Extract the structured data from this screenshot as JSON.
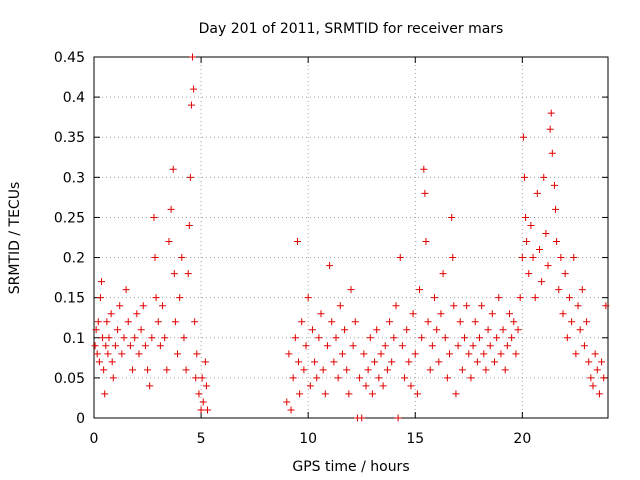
{
  "chart_data": {
    "type": "scatter",
    "title": "Day 201 of 2011, SRMTID for receiver mars",
    "xlabel": "GPS time / hours",
    "ylabel": "SRMTID / TECUs",
    "xlim": [
      0,
      24
    ],
    "ylim": [
      0,
      0.45
    ],
    "xticks": [
      0,
      5,
      10,
      15,
      20
    ],
    "yticks": [
      0,
      0.05,
      0.1,
      0.15,
      0.2,
      0.25,
      0.3,
      0.35,
      0.4,
      0.45
    ],
    "xtick_labels": [
      "0",
      "5",
      "10",
      "15",
      "20"
    ],
    "ytick_labels": [
      "0",
      "0.05",
      "0.1",
      "0.15",
      "0.2",
      "0.25",
      "0.3",
      "0.35",
      "0.4",
      "0.45"
    ],
    "grid": true,
    "marker": "+",
    "color": "#e00000",
    "series": [
      {
        "name": "SRMTID",
        "points": [
          [
            0.05,
            0.09
          ],
          [
            0.1,
            0.11
          ],
          [
            0.15,
            0.08
          ],
          [
            0.2,
            0.12
          ],
          [
            0.25,
            0.07
          ],
          [
            0.3,
            0.15
          ],
          [
            0.35,
            0.17
          ],
          [
            0.4,
            0.1
          ],
          [
            0.45,
            0.06
          ],
          [
            0.5,
            0.03
          ],
          [
            0.55,
            0.09
          ],
          [
            0.6,
            0.12
          ],
          [
            0.65,
            0.08
          ],
          [
            0.7,
            0.1
          ],
          [
            0.8,
            0.13
          ],
          [
            0.85,
            0.07
          ],
          [
            0.9,
            0.05
          ],
          [
            1.0,
            0.09
          ],
          [
            1.1,
            0.11
          ],
          [
            1.2,
            0.14
          ],
          [
            1.3,
            0.08
          ],
          [
            1.4,
            0.1
          ],
          [
            1.5,
            0.16
          ],
          [
            1.6,
            0.12
          ],
          [
            1.7,
            0.09
          ],
          [
            1.8,
            0.06
          ],
          [
            1.9,
            0.1
          ],
          [
            2.0,
            0.13
          ],
          [
            2.1,
            0.08
          ],
          [
            2.2,
            0.11
          ],
          [
            2.3,
            0.14
          ],
          [
            2.4,
            0.09
          ],
          [
            2.5,
            0.06
          ],
          [
            2.6,
            0.04
          ],
          [
            2.7,
            0.1
          ],
          [
            2.8,
            0.25
          ],
          [
            2.85,
            0.2
          ],
          [
            2.9,
            0.15
          ],
          [
            3.0,
            0.12
          ],
          [
            3.1,
            0.09
          ],
          [
            3.2,
            0.14
          ],
          [
            3.3,
            0.1
          ],
          [
            3.4,
            0.06
          ],
          [
            3.5,
            0.22
          ],
          [
            3.6,
            0.26
          ],
          [
            3.7,
            0.31
          ],
          [
            3.75,
            0.18
          ],
          [
            3.8,
            0.12
          ],
          [
            3.9,
            0.08
          ],
          [
            4.0,
            0.15
          ],
          [
            4.1,
            0.2
          ],
          [
            4.2,
            0.1
          ],
          [
            4.3,
            0.06
          ],
          [
            4.4,
            0.18
          ],
          [
            4.45,
            0.24
          ],
          [
            4.5,
            0.3
          ],
          [
            4.55,
            0.39
          ],
          [
            4.6,
            0.45
          ],
          [
            4.65,
            0.41
          ],
          [
            4.7,
            0.12
          ],
          [
            4.75,
            0.05
          ],
          [
            4.8,
            0.08
          ],
          [
            4.9,
            0.03
          ],
          [
            5.0,
            0.01
          ],
          [
            5.05,
            0.05
          ],
          [
            5.1,
            0.02
          ],
          [
            5.2,
            0.07
          ],
          [
            5.25,
            0.04
          ],
          [
            5.3,
            0.01
          ],
          [
            9.0,
            0.02
          ],
          [
            9.1,
            0.08
          ],
          [
            9.2,
            0.01
          ],
          [
            9.3,
            0.05
          ],
          [
            9.4,
            0.1
          ],
          [
            9.5,
            0.22
          ],
          [
            9.55,
            0.07
          ],
          [
            9.6,
            0.03
          ],
          [
            9.7,
            0.12
          ],
          [
            9.8,
            0.06
          ],
          [
            9.9,
            0.09
          ],
          [
            10.0,
            0.15
          ],
          [
            10.1,
            0.04
          ],
          [
            10.2,
            0.11
          ],
          [
            10.3,
            0.07
          ],
          [
            10.4,
            0.05
          ],
          [
            10.5,
            0.1
          ],
          [
            10.6,
            0.13
          ],
          [
            10.7,
            0.06
          ],
          [
            10.8,
            0.03
          ],
          [
            10.9,
            0.09
          ],
          [
            11.0,
            0.19
          ],
          [
            11.1,
            0.12
          ],
          [
            11.2,
            0.07
          ],
          [
            11.3,
            0.1
          ],
          [
            11.4,
            0.05
          ],
          [
            11.5,
            0.14
          ],
          [
            11.6,
            0.08
          ],
          [
            11.7,
            0.11
          ],
          [
            11.8,
            0.06
          ],
          [
            11.9,
            0.03
          ],
          [
            12.0,
            0.16
          ],
          [
            12.1,
            0.09
          ],
          [
            12.2,
            0.12
          ],
          [
            12.3,
            0.0
          ],
          [
            12.4,
            0.05
          ],
          [
            12.5,
            0.0
          ],
          [
            12.6,
            0.08
          ],
          [
            12.7,
            0.04
          ],
          [
            12.8,
            0.06
          ],
          [
            12.9,
            0.1
          ],
          [
            13.0,
            0.03
          ],
          [
            13.1,
            0.07
          ],
          [
            13.2,
            0.11
          ],
          [
            13.3,
            0.05
          ],
          [
            13.4,
            0.08
          ],
          [
            13.5,
            0.04
          ],
          [
            13.6,
            0.09
          ],
          [
            13.7,
            0.06
          ],
          [
            13.8,
            0.12
          ],
          [
            13.9,
            0.07
          ],
          [
            14.0,
            0.1
          ],
          [
            14.1,
            0.14
          ],
          [
            14.2,
            0.0
          ],
          [
            14.3,
            0.2
          ],
          [
            14.4,
            0.09
          ],
          [
            14.5,
            0.05
          ],
          [
            14.6,
            0.11
          ],
          [
            14.7,
            0.07
          ],
          [
            14.8,
            0.04
          ],
          [
            14.9,
            0.13
          ],
          [
            15.0,
            0.08
          ],
          [
            15.1,
            0.03
          ],
          [
            15.2,
            0.16
          ],
          [
            15.3,
            0.1
          ],
          [
            15.4,
            0.31
          ],
          [
            15.45,
            0.28
          ],
          [
            15.5,
            0.22
          ],
          [
            15.6,
            0.12
          ],
          [
            15.7,
            0.06
          ],
          [
            15.8,
            0.09
          ],
          [
            15.9,
            0.15
          ],
          [
            16.0,
            0.11
          ],
          [
            16.1,
            0.07
          ],
          [
            16.2,
            0.13
          ],
          [
            16.3,
            0.18
          ],
          [
            16.4,
            0.1
          ],
          [
            16.5,
            0.05
          ],
          [
            16.6,
            0.08
          ],
          [
            16.7,
            0.25
          ],
          [
            16.75,
            0.2
          ],
          [
            16.8,
            0.14
          ],
          [
            16.9,
            0.03
          ],
          [
            17.0,
            0.09
          ],
          [
            17.1,
            0.12
          ],
          [
            17.2,
            0.06
          ],
          [
            17.3,
            0.1
          ],
          [
            17.4,
            0.14
          ],
          [
            17.5,
            0.08
          ],
          [
            17.6,
            0.05
          ],
          [
            17.7,
            0.09
          ],
          [
            17.8,
            0.12
          ],
          [
            17.9,
            0.07
          ],
          [
            18.0,
            0.1
          ],
          [
            18.1,
            0.14
          ],
          [
            18.2,
            0.08
          ],
          [
            18.3,
            0.06
          ],
          [
            18.4,
            0.11
          ],
          [
            18.5,
            0.09
          ],
          [
            18.6,
            0.13
          ],
          [
            18.7,
            0.07
          ],
          [
            18.8,
            0.1
          ],
          [
            18.9,
            0.15
          ],
          [
            19.0,
            0.08
          ],
          [
            19.1,
            0.11
          ],
          [
            19.2,
            0.06
          ],
          [
            19.3,
            0.09
          ],
          [
            19.4,
            0.13
          ],
          [
            19.5,
            0.1
          ],
          [
            19.6,
            0.12
          ],
          [
            19.7,
            0.08
          ],
          [
            19.8,
            0.11
          ],
          [
            19.9,
            0.15
          ],
          [
            20.0,
            0.2
          ],
          [
            20.05,
            0.35
          ],
          [
            20.1,
            0.3
          ],
          [
            20.15,
            0.25
          ],
          [
            20.2,
            0.22
          ],
          [
            20.3,
            0.18
          ],
          [
            20.4,
            0.24
          ],
          [
            20.5,
            0.2
          ],
          [
            20.6,
            0.15
          ],
          [
            20.7,
            0.28
          ],
          [
            20.8,
            0.21
          ],
          [
            20.9,
            0.17
          ],
          [
            21.0,
            0.3
          ],
          [
            21.1,
            0.23
          ],
          [
            21.2,
            0.19
          ],
          [
            21.3,
            0.36
          ],
          [
            21.35,
            0.38
          ],
          [
            21.4,
            0.33
          ],
          [
            21.5,
            0.29
          ],
          [
            21.55,
            0.26
          ],
          [
            21.6,
            0.22
          ],
          [
            21.7,
            0.16
          ],
          [
            21.8,
            0.2
          ],
          [
            21.9,
            0.13
          ],
          [
            22.0,
            0.18
          ],
          [
            22.1,
            0.1
          ],
          [
            22.2,
            0.15
          ],
          [
            22.3,
            0.12
          ],
          [
            22.4,
            0.2
          ],
          [
            22.5,
            0.08
          ],
          [
            22.6,
            0.14
          ],
          [
            22.7,
            0.11
          ],
          [
            22.8,
            0.16
          ],
          [
            22.9,
            0.09
          ],
          [
            23.0,
            0.12
          ],
          [
            23.1,
            0.07
          ],
          [
            23.2,
            0.05
          ],
          [
            23.3,
            0.04
          ],
          [
            23.4,
            0.08
          ],
          [
            23.5,
            0.06
          ],
          [
            23.6,
            0.03
          ],
          [
            23.7,
            0.07
          ],
          [
            23.8,
            0.05
          ],
          [
            23.9,
            0.14
          ]
        ]
      }
    ]
  }
}
